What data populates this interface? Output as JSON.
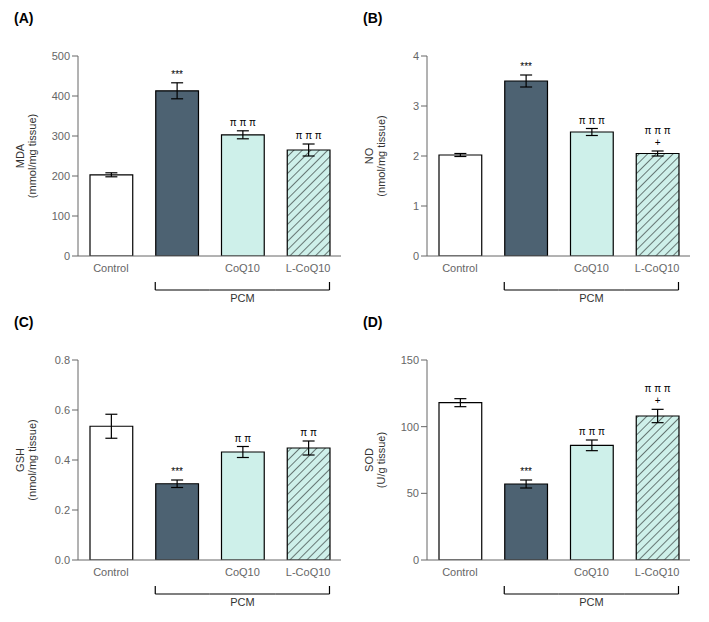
{
  "chart_data": [
    {
      "type": "bar",
      "title": "(A)",
      "ylabel": "MDA\n(mmol/mg tissue)",
      "categories": [
        "Control",
        null,
        "CoQ10",
        "L-CoQ10"
      ],
      "values": [
        203,
        413,
        303,
        265
      ],
      "errors": [
        5,
        20,
        10,
        15
      ],
      "colors": [
        "#ffffff",
        "#4d6272",
        "#cef0ea",
        "#cef0ea"
      ],
      "ylim": [
        0,
        500
      ],
      "yticks": [
        0,
        100,
        200,
        300,
        400,
        500
      ],
      "grid": false,
      "annotations": [
        null,
        [
          "***"
        ],
        [
          "π π π"
        ],
        [
          "π π π"
        ]
      ],
      "bracket_label": "PCM"
    },
    {
      "type": "bar",
      "title": "(B)",
      "ylabel": "NO\n(nmol/mg tissue)",
      "categories": [
        "Control",
        null,
        "CoQ10",
        "L-CoQ10"
      ],
      "values": [
        2.02,
        3.5,
        2.48,
        2.05
      ],
      "errors": [
        0.03,
        0.12,
        0.07,
        0.05
      ],
      "colors": [
        "#ffffff",
        "#4d6272",
        "#cef0ea",
        "#cef0ea"
      ],
      "ylim": [
        0,
        4
      ],
      "yticks": [
        0,
        1,
        2,
        3,
        4
      ],
      "grid": false,
      "annotations": [
        null,
        [
          "***"
        ],
        [
          "π π π"
        ],
        [
          "π π π",
          "+"
        ]
      ],
      "bracket_label": "PCM"
    },
    {
      "type": "bar",
      "title": "(C)",
      "ylabel": "GSH\n(nmol/mg tissue)",
      "categories": [
        "Control",
        null,
        "CoQ10",
        "L-CoQ10"
      ],
      "values": [
        0.535,
        0.305,
        0.432,
        0.448
      ],
      "errors": [
        0.048,
        0.015,
        0.022,
        0.028
      ],
      "colors": [
        "#ffffff",
        "#4d6272",
        "#cef0ea",
        "#cef0ea"
      ],
      "ylim": [
        0,
        0.8
      ],
      "yticks": [
        {
          "value": 0,
          "label": "0.0"
        },
        0.2,
        0.4,
        0.6,
        0.8
      ],
      "grid": false,
      "annotations": [
        null,
        [
          "***"
        ],
        [
          "π π"
        ],
        [
          "π π"
        ]
      ],
      "bracket_label": "PCM"
    },
    {
      "type": "bar",
      "title": "(D)",
      "ylabel": "SOD\n(U/g tissue)",
      "categories": [
        "Control",
        null,
        "CoQ10",
        "L-CoQ10"
      ],
      "values": [
        118,
        57,
        86,
        108
      ],
      "errors": [
        3,
        3,
        4,
        5
      ],
      "colors": [
        "#ffffff",
        "#4d6272",
        "#cef0ea",
        "#cef0ea"
      ],
      "ylim": [
        0,
        150
      ],
      "yticks": [
        0,
        50,
        100,
        150
      ],
      "grid": false,
      "annotations": [
        null,
        [
          "***"
        ],
        [
          "π π π"
        ],
        [
          "π π π",
          "+"
        ]
      ],
      "bracket_label": "PCM"
    }
  ]
}
